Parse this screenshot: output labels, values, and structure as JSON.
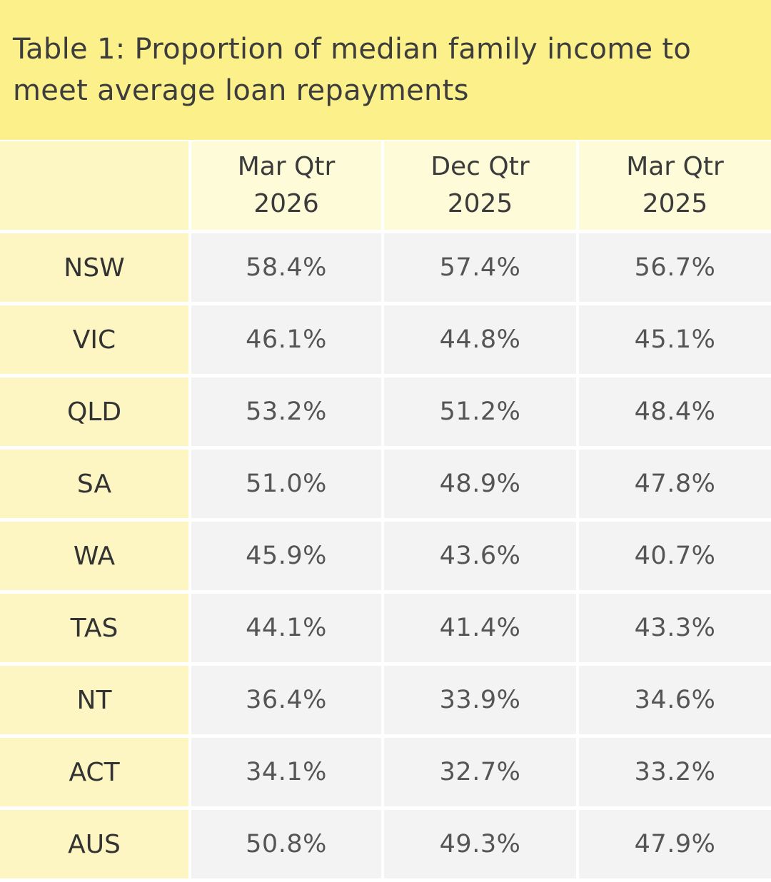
{
  "title": "Table 1: Proportion of median family income to meet average loan repayments",
  "colors": {
    "title_background": "#fbf08a",
    "header_background": "#fefbd9",
    "row_label_background": "#fdf6c3",
    "value_background": "#f3f3f3"
  },
  "chart_data": {
    "type": "table",
    "title": "Table 1: Proportion of median family income to meet average loan repayments",
    "columns": [
      {
        "line1": "Mar Qtr",
        "line2": "2026"
      },
      {
        "line1": "Dec Qtr",
        "line2": "2025"
      },
      {
        "line1": "Mar Qtr",
        "line2": "2025"
      }
    ],
    "rows": [
      {
        "label": "NSW",
        "values": [
          "58.4%",
          "57.4%",
          "56.7%"
        ]
      },
      {
        "label": "VIC",
        "values": [
          "46.1%",
          "44.8%",
          "45.1%"
        ]
      },
      {
        "label": "QLD",
        "values": [
          "53.2%",
          "51.2%",
          "48.4%"
        ]
      },
      {
        "label": "SA",
        "values": [
          "51.0%",
          "48.9%",
          "47.8%"
        ]
      },
      {
        "label": "WA",
        "values": [
          "45.9%",
          "43.6%",
          "40.7%"
        ]
      },
      {
        "label": "TAS",
        "values": [
          "44.1%",
          "41.4%",
          "43.3%"
        ]
      },
      {
        "label": "NT",
        "values": [
          "36.4%",
          "33.9%",
          "34.6%"
        ]
      },
      {
        "label": "ACT",
        "values": [
          "34.1%",
          "32.7%",
          "33.2%"
        ]
      },
      {
        "label": "AUS",
        "values": [
          "50.8%",
          "49.3%",
          "47.9%"
        ]
      }
    ]
  }
}
